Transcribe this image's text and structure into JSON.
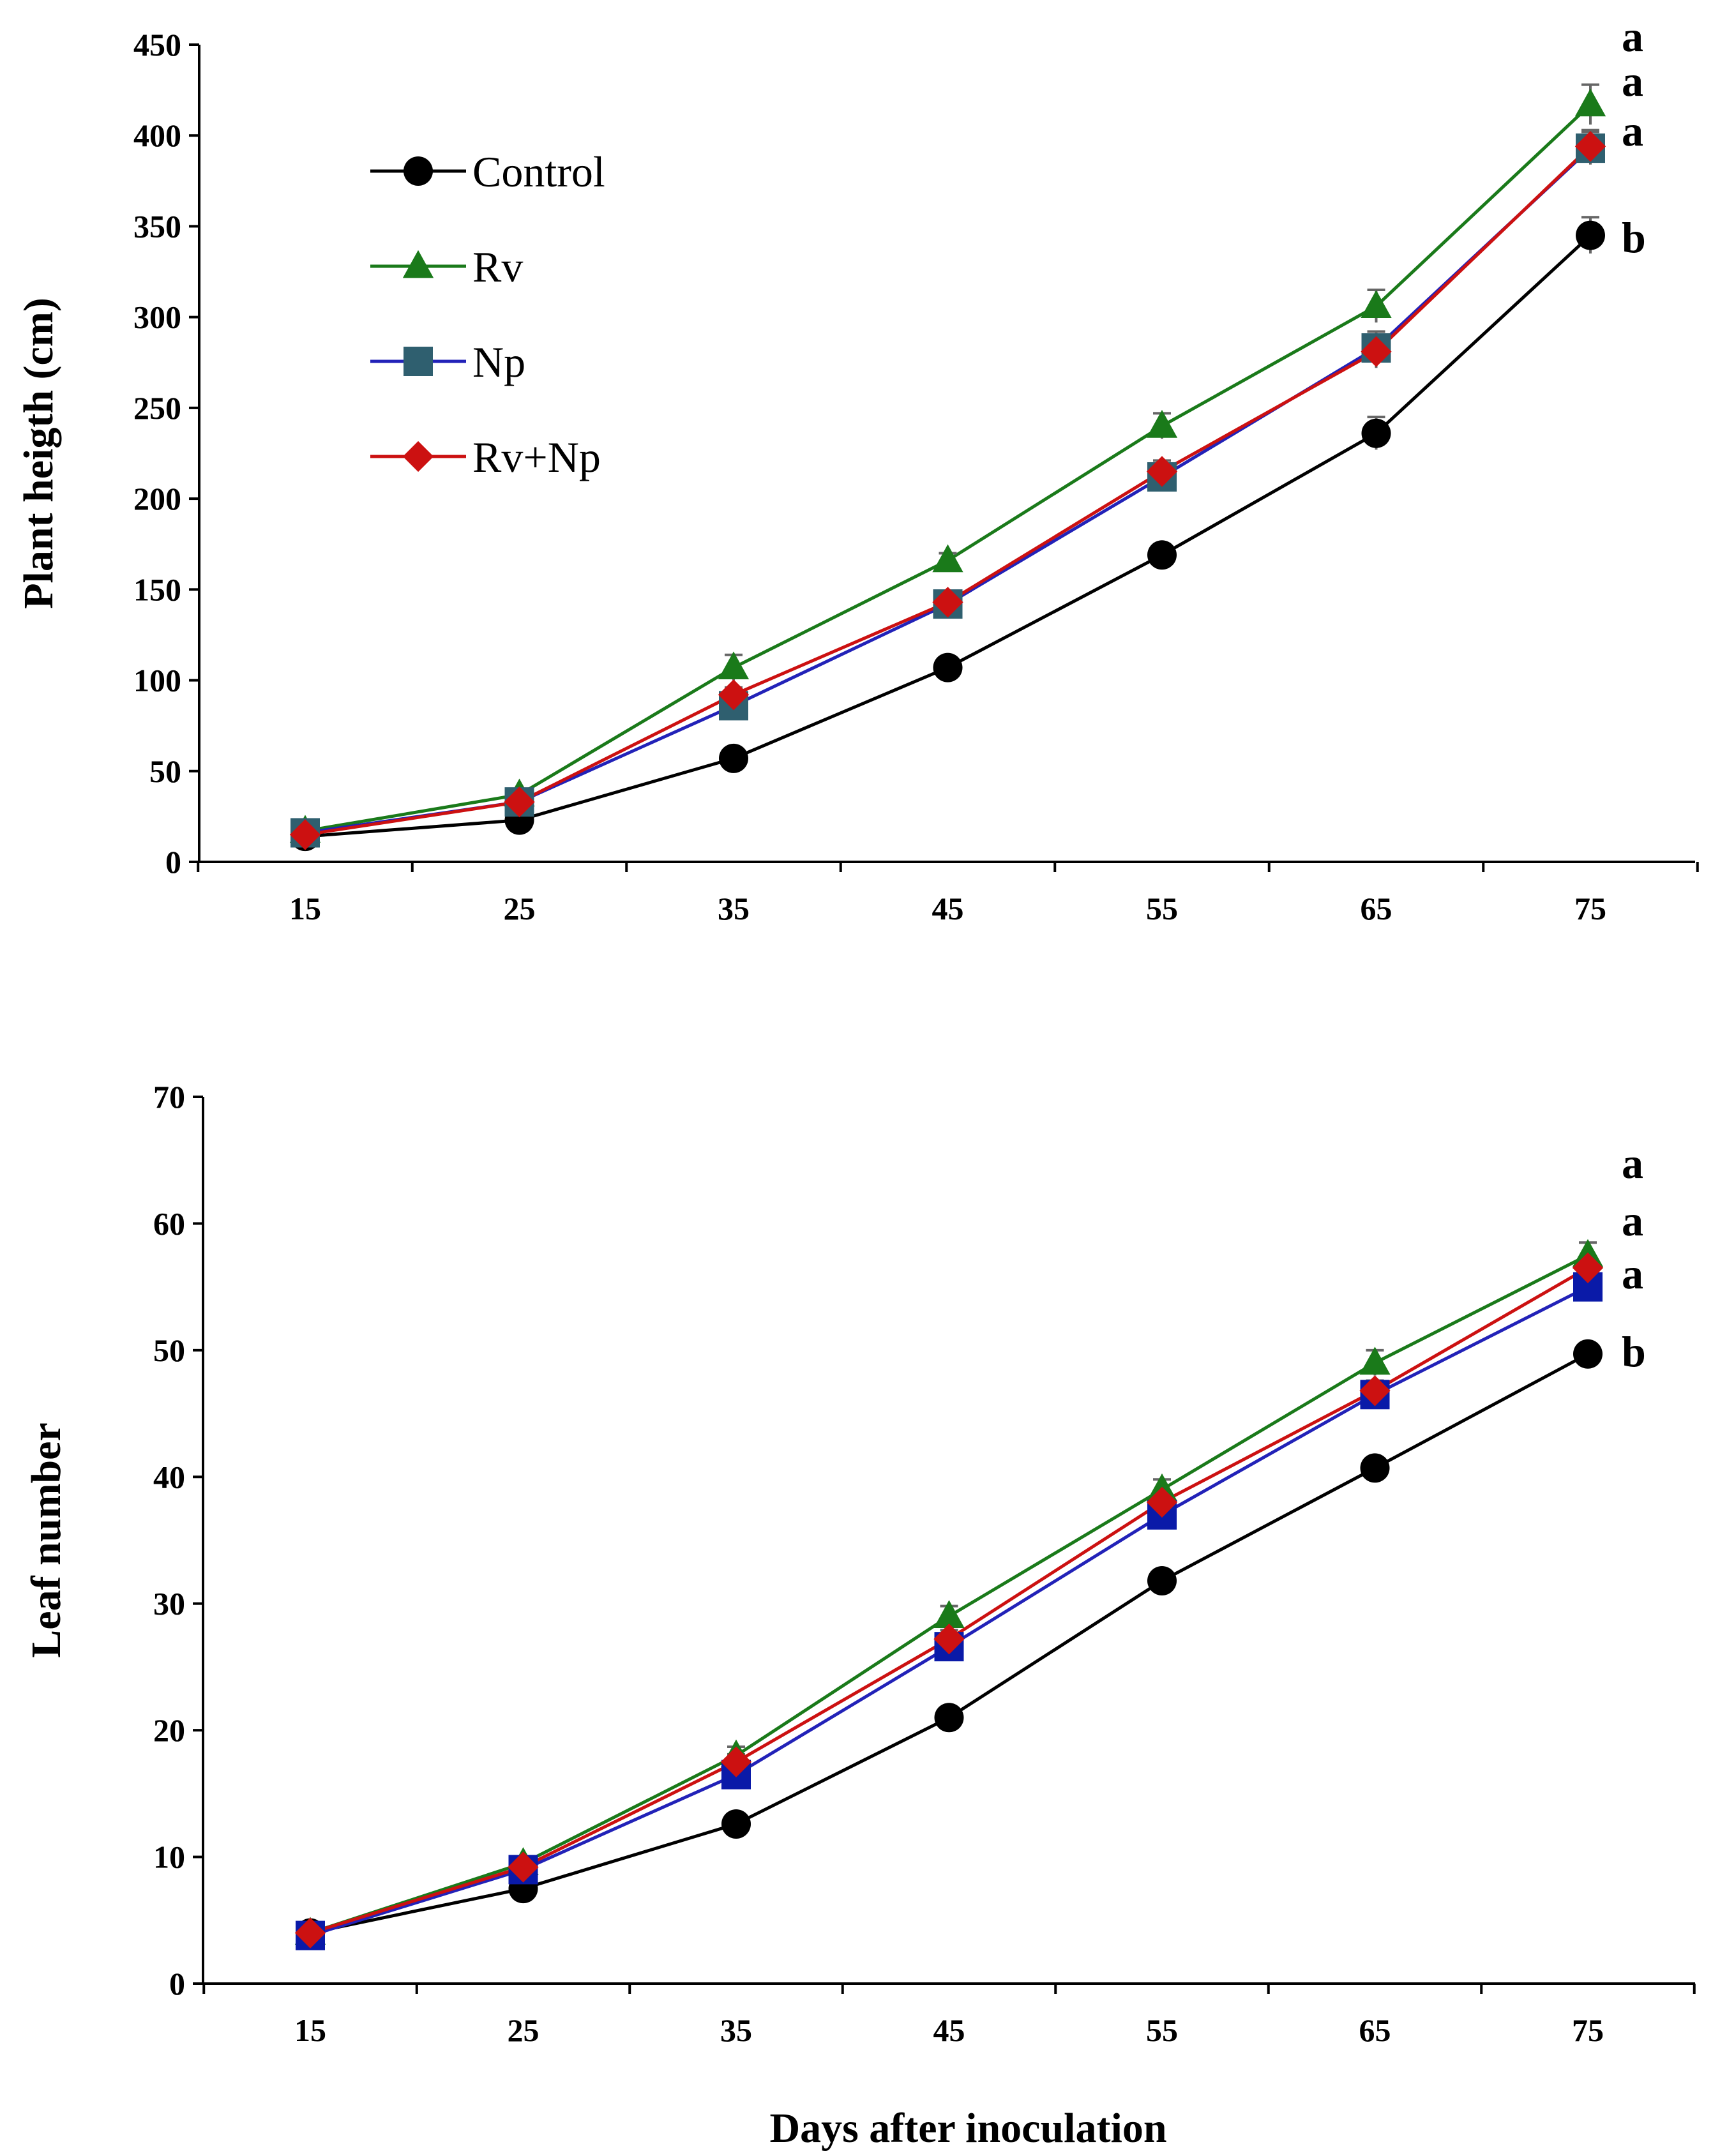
{
  "chart_data": [
    {
      "type": "line",
      "title": "",
      "xlabel": "",
      "ylabel": "Plant heigth (cm)",
      "x": [
        15,
        25,
        35,
        45,
        55,
        65,
        75
      ],
      "x_tick_labels": [
        "15",
        "25",
        "35",
        "45",
        "55",
        "65",
        "75"
      ],
      "ylim": [
        0,
        450
      ],
      "y_ticks": [
        0,
        50,
        100,
        150,
        200,
        250,
        300,
        350,
        400,
        450
      ],
      "y_tick_labels": [
        "0",
        "50",
        "100",
        "150",
        "200",
        "250",
        "300",
        "350",
        "400",
        "450"
      ],
      "grid": false,
      "legend_position": "top-left",
      "series": [
        {
          "name": "Control",
          "color": "#000000",
          "marker": "circle",
          "values": [
            14,
            23,
            57,
            107,
            169,
            236,
            345
          ],
          "errors": [
            2,
            2,
            3,
            4,
            6,
            9,
            10
          ]
        },
        {
          "name": "Rv",
          "color": "#1a7a1a",
          "marker": "triangle",
          "values": [
            17,
            37,
            107,
            166,
            240,
            306,
            417
          ],
          "errors": [
            2,
            2,
            7,
            4,
            7,
            9,
            11
          ]
        },
        {
          "name": "Np",
          "color": "#2222b8",
          "marker": "square",
          "values": [
            16,
            33,
            86,
            142,
            212,
            283,
            393
          ],
          "errors": [
            2,
            2,
            4,
            4,
            6,
            9,
            9
          ],
          "marker_color": "#2f5f6f"
        },
        {
          "name": "Rv+Np",
          "color": "#cc1111",
          "marker": "diamond",
          "values": [
            15,
            33,
            92,
            143,
            215,
            281,
            394
          ],
          "errors": [
            2,
            2,
            4,
            4,
            6,
            9,
            9
          ]
        }
      ],
      "annotations": [
        "a",
        "a",
        "a",
        "b"
      ]
    },
    {
      "type": "line",
      "title": "",
      "xlabel": "Days after inoculation",
      "ylabel": "Leaf number",
      "x": [
        15,
        25,
        35,
        45,
        55,
        65,
        75
      ],
      "x_tick_labels": [
        "15",
        "25",
        "35",
        "45",
        "55",
        "65",
        "75"
      ],
      "ylim": [
        0,
        70
      ],
      "y_ticks": [
        0,
        10,
        20,
        30,
        40,
        50,
        60,
        70
      ],
      "y_tick_labels": [
        "0",
        "10",
        "20",
        "30",
        "40",
        "50",
        "60",
        "70"
      ],
      "grid": false,
      "legend_position": "none",
      "series": [
        {
          "name": "Control",
          "color": "#000000",
          "marker": "circle",
          "values": [
            4,
            7.5,
            12.6,
            21,
            31.8,
            40.7,
            49.7
          ],
          "errors": [
            0.3,
            0.4,
            0.5,
            0.6,
            0.7,
            0.8,
            0.8
          ]
        },
        {
          "name": "Rv",
          "color": "#1a7a1a",
          "marker": "triangle",
          "values": [
            4,
            9.5,
            18,
            29,
            39,
            49,
            57.5
          ],
          "errors": [
            0.3,
            0.4,
            0.7,
            0.8,
            0.8,
            1,
            1
          ]
        },
        {
          "name": "Np",
          "color": "#2222b8",
          "marker": "square",
          "values": [
            3.8,
            9,
            16.5,
            26.6,
            37,
            46.5,
            55
          ],
          "errors": [
            0.3,
            0.4,
            0.6,
            0.7,
            0.8,
            0.8,
            0.9
          ],
          "marker_color": "#0a1aa8"
        },
        {
          "name": "Rv+Np",
          "color": "#cc1111",
          "marker": "diamond",
          "values": [
            4,
            9.2,
            17.5,
            27.2,
            38,
            46.8,
            56.5
          ],
          "errors": [
            0.3,
            0.4,
            0.6,
            0.7,
            0.8,
            0.8,
            0.9
          ]
        }
      ],
      "annotations": [
        "a",
        "a",
        "a",
        "b"
      ]
    }
  ]
}
